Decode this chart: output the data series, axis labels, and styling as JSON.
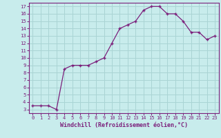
{
  "x": [
    0,
    1,
    2,
    3,
    4,
    5,
    6,
    7,
    8,
    9,
    10,
    11,
    12,
    13,
    14,
    15,
    16,
    17,
    18,
    19,
    20,
    21,
    22,
    23
  ],
  "y": [
    3.5,
    3.5,
    3.5,
    3.0,
    8.5,
    9.0,
    9.0,
    9.0,
    9.5,
    10.0,
    12.0,
    14.0,
    14.5,
    15.0,
    16.5,
    17.0,
    17.0,
    16.0,
    16.0,
    15.0,
    13.5,
    13.5,
    12.5,
    13.0
  ],
  "line_color": "#7b1f7b",
  "marker_color": "#7b1f7b",
  "bg_color": "#c8ecec",
  "grid_color": "#aad4d4",
  "xlabel": "Windchill (Refroidissement éolien,°C)",
  "xlabel_color": "#7b1f7b",
  "tick_color": "#7b1f7b",
  "xlim": [
    -0.5,
    23.5
  ],
  "ylim": [
    2.5,
    17.5
  ],
  "yticks": [
    3,
    4,
    5,
    6,
    7,
    8,
    9,
    10,
    11,
    12,
    13,
    14,
    15,
    16,
    17
  ],
  "xticks": [
    0,
    1,
    2,
    3,
    4,
    5,
    6,
    7,
    8,
    9,
    10,
    11,
    12,
    13,
    14,
    15,
    16,
    17,
    18,
    19,
    20,
    21,
    22,
    23
  ],
  "border_color": "#7b1f7b"
}
